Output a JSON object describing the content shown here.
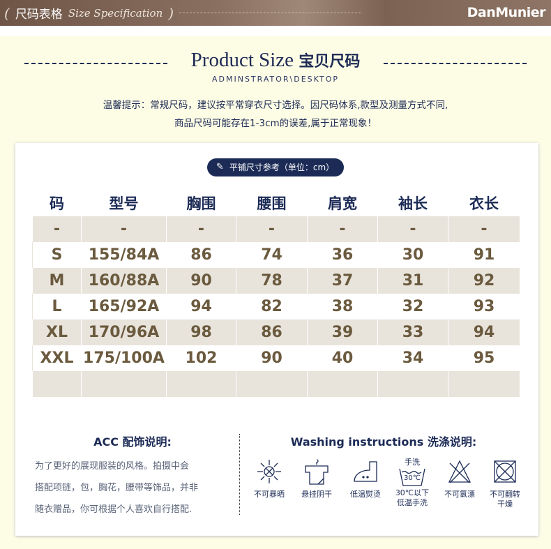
{
  "banner": {
    "title_zh": "尺码表格",
    "title_en": "Size Specification",
    "logo": "DanMunier"
  },
  "heading": {
    "title_en": "Product Size",
    "title_zh": "宝贝尺码",
    "subtitle": "ADMINSTRATOR\\DESKTOP"
  },
  "tip": {
    "line1": "温馨提示：常规尺码，建议按平常穿衣尺寸选择。因尺码体系,款型及测量方式不同,",
    "line2": "商品尺码可能存在1-3cm的误差,属于正常现象！"
  },
  "pill": {
    "label": "平铺尺寸参考（单位：cm）",
    "icon": "tape-measure-icon"
  },
  "table": {
    "headers": [
      "码",
      "型号",
      "胸围",
      "腰围",
      "肩宽",
      "袖长",
      "衣长"
    ],
    "rows": [
      [
        "-",
        "-",
        "-",
        "-",
        "-",
        "-",
        "-"
      ],
      [
        "S",
        "155/84A",
        "86",
        "74",
        "36",
        "30",
        "91"
      ],
      [
        "M",
        "160/88A",
        "90",
        "78",
        "37",
        "31",
        "92"
      ],
      [
        "L",
        "165/92A",
        "94",
        "82",
        "38",
        "32",
        "93"
      ],
      [
        "XL",
        "170/96A",
        "98",
        "86",
        "39",
        "33",
        "94"
      ],
      [
        "XXL",
        "175/100A",
        "102",
        "90",
        "40",
        "34",
        "95"
      ],
      [
        "",
        "",
        "",
        "",
        "",
        "",
        ""
      ]
    ]
  },
  "acc": {
    "title": "ACC  配饰说明:",
    "lines": [
      "为了更好的展现服装的风格。拍摄中会",
      "搭配项链，包，胸花，腰带等饰品，并非",
      "随衣赠品，你可根据个人喜欢自行搭配."
    ]
  },
  "washing": {
    "title": "Washing instructions  洗涤说明:",
    "items": [
      {
        "icon": "no-sun-icon",
        "label": "不可暴晒"
      },
      {
        "icon": "hang-dry-icon",
        "label": "悬挂阴干"
      },
      {
        "icon": "low-iron-icon",
        "label": "低温熨烫"
      },
      {
        "icon": "hand-wash-icon",
        "top": "手洗",
        "temp": "30℃",
        "label": "30℃以下低温手洗"
      },
      {
        "icon": "no-bleach-icon",
        "label": "不可氯漂"
      },
      {
        "icon": "no-tumble-dry-icon",
        "label": "不可翻转干燥"
      }
    ]
  },
  "colors": {
    "navy": "#1c2b56",
    "brown_text": "#6b5a3e",
    "row_gray": "#e8e4dc",
    "cream": "#fdfde6"
  }
}
